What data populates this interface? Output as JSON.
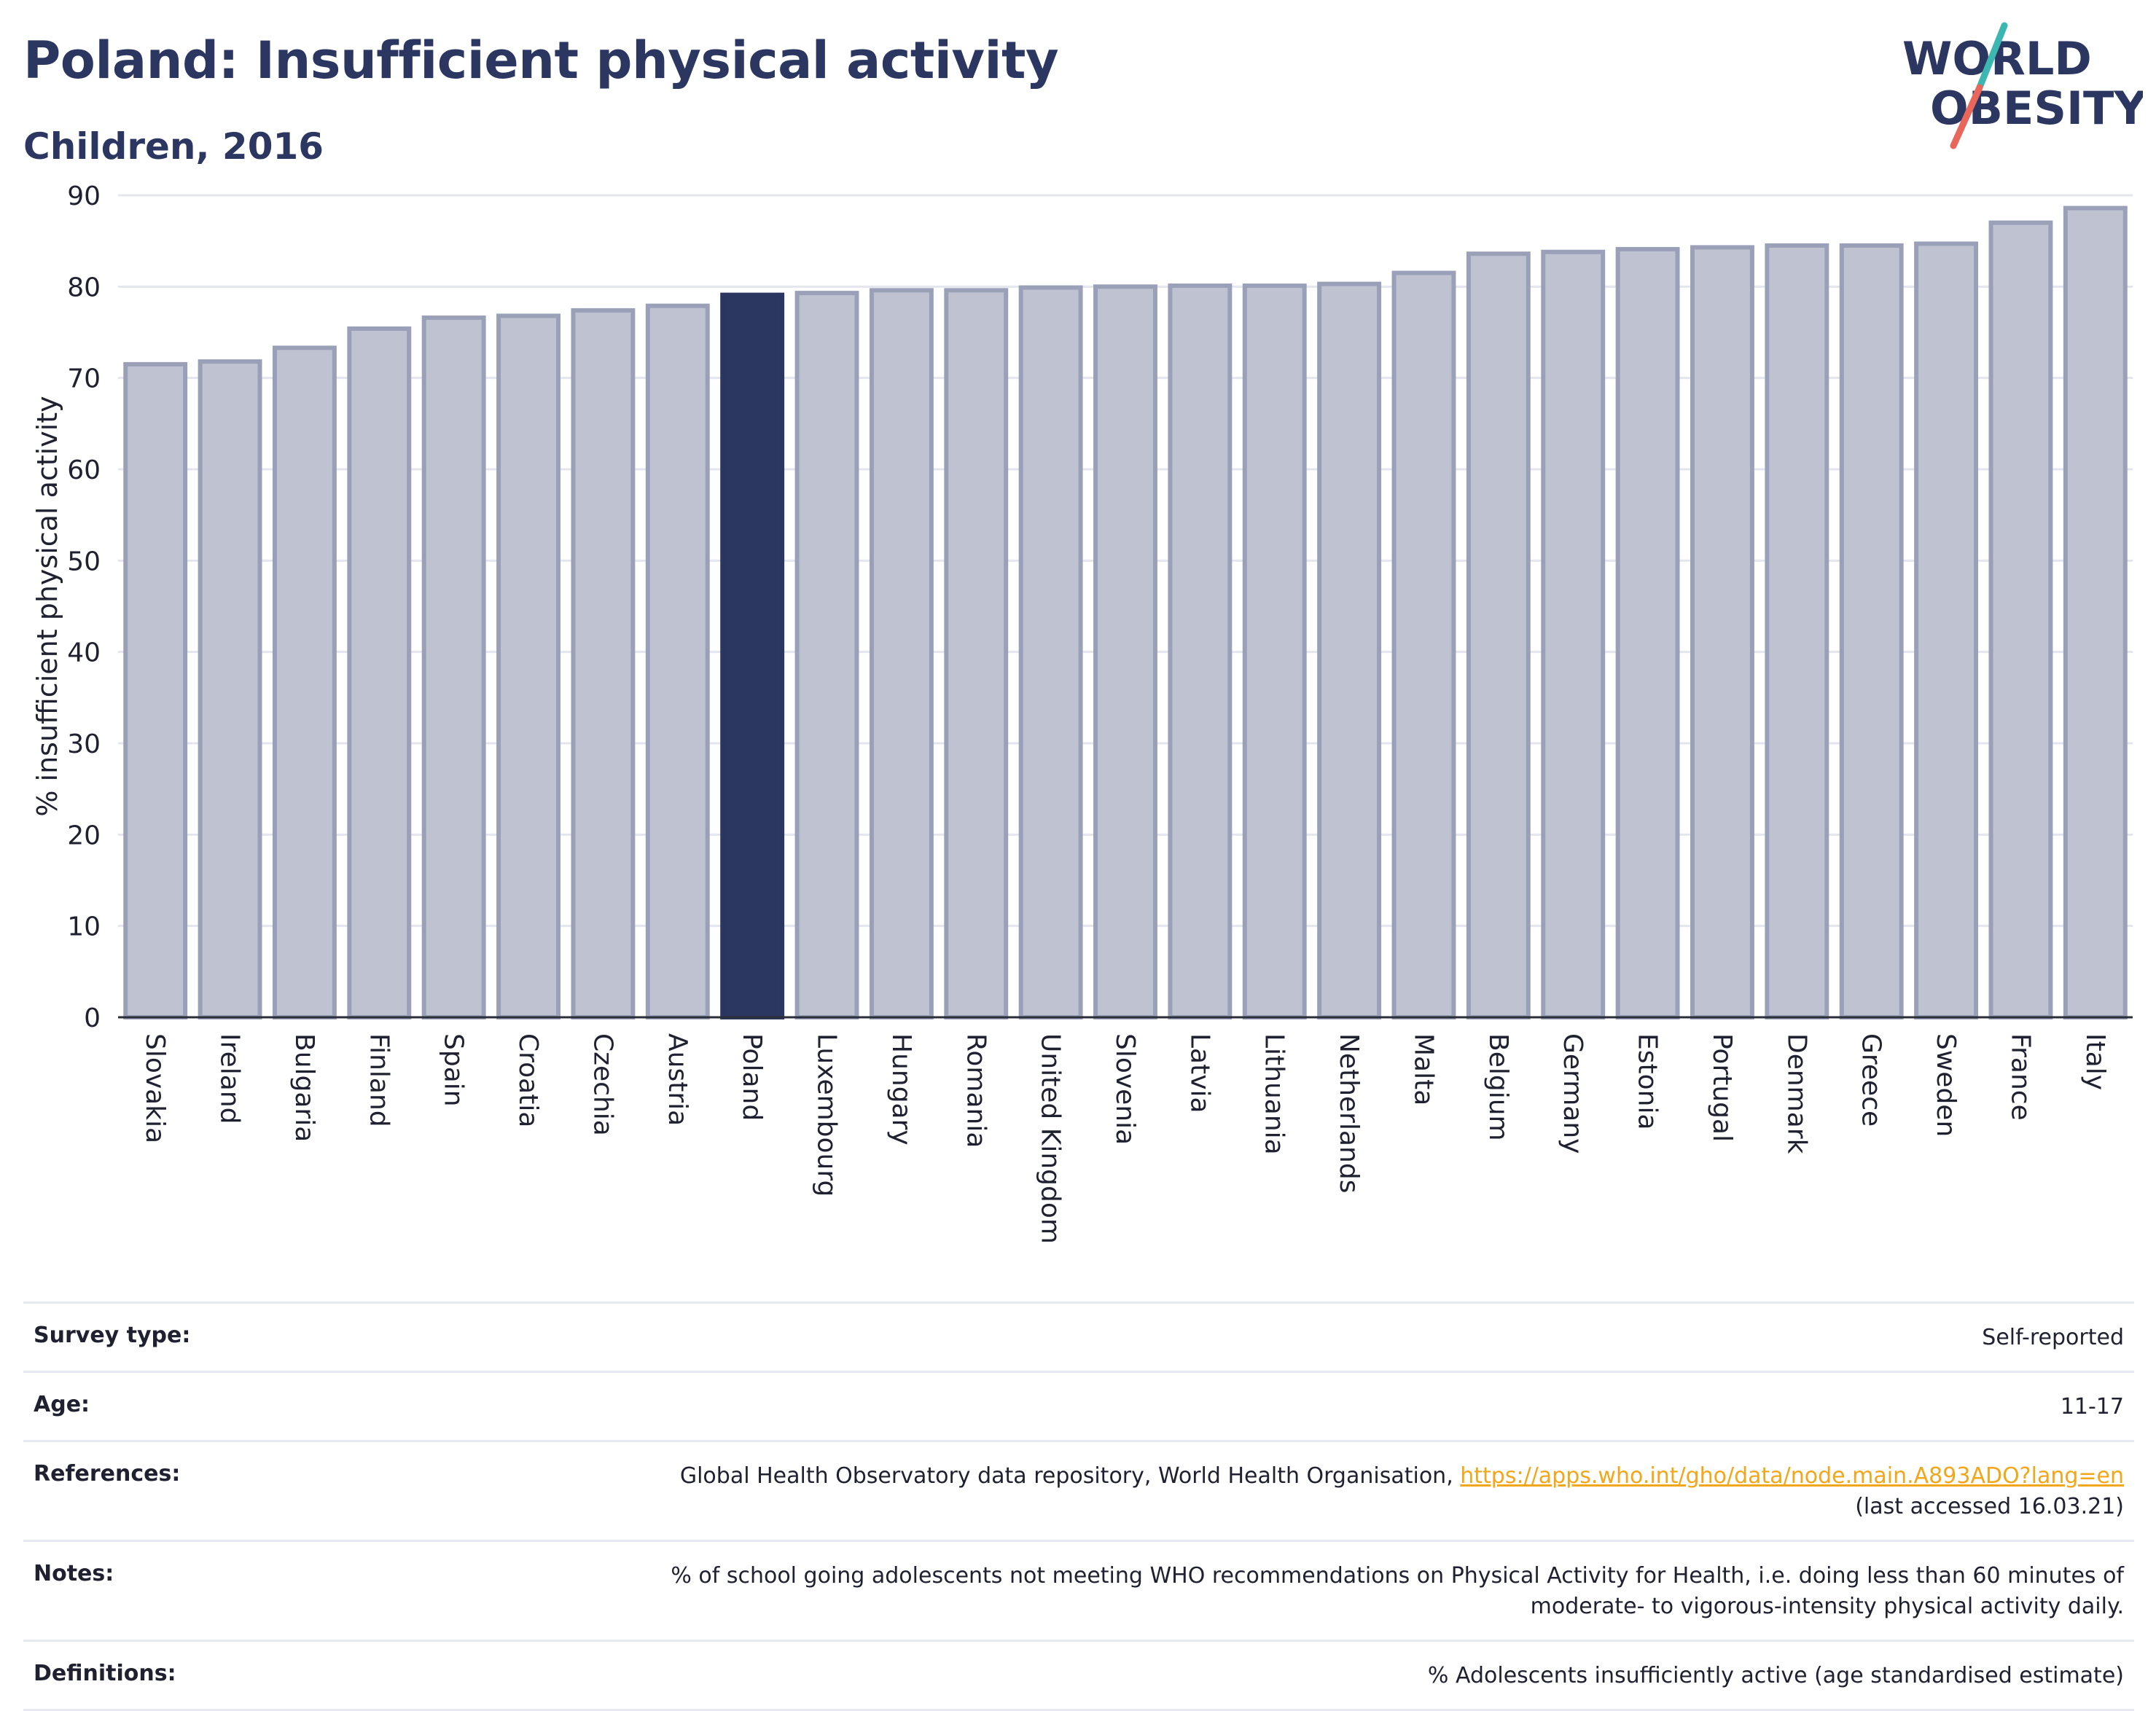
{
  "header": {
    "title": "Poland: Insufficient physical activity",
    "subtitle": "Children, 2016",
    "logo": {
      "line1": "WORLD",
      "line2": "OBESITY"
    }
  },
  "colors": {
    "highlight_bar": "#2b3661",
    "bar_fill": "#bfc3d1",
    "bar_stroke": "#9aa0b8",
    "title": "#2b3661",
    "link": "#f2a71b",
    "logo_slash_teal": "#3bb6b0",
    "logo_slash_coral": "#e8675a"
  },
  "chart_data": {
    "type": "bar",
    "title": "Poland: Insufficient physical activity",
    "subtitle": "Children, 2016",
    "xlabel": "",
    "ylabel": "% insufficient physical activity",
    "ylim": [
      0,
      90
    ],
    "yticks": [
      0,
      10,
      20,
      30,
      40,
      50,
      60,
      70,
      80,
      90
    ],
    "grid": true,
    "highlight": "Poland",
    "categories": [
      "Slovakia",
      "Ireland",
      "Bulgaria",
      "Finland",
      "Spain",
      "Croatia",
      "Czechia",
      "Austria",
      "Poland",
      "Luxembourg",
      "Hungary",
      "Romania",
      "United Kingdom",
      "Slovenia",
      "Latvia",
      "Lithuania",
      "Netherlands",
      "Malta",
      "Belgium",
      "Germany",
      "Estonia",
      "Portugal",
      "Denmark",
      "Greece",
      "Sweden",
      "France",
      "Italy"
    ],
    "values": [
      71.5,
      71.8,
      73.3,
      75.4,
      76.6,
      76.8,
      77.4,
      77.9,
      79.1,
      79.3,
      79.6,
      79.6,
      79.9,
      80.0,
      80.1,
      80.1,
      80.3,
      81.5,
      83.6,
      83.8,
      84.1,
      84.3,
      84.5,
      84.5,
      84.7,
      87.0,
      88.6
    ]
  },
  "meta": {
    "survey_type": {
      "label": "Survey type:",
      "value": "Self-reported"
    },
    "age": {
      "label": "Age:",
      "value": "11-17"
    },
    "references": {
      "label": "References:",
      "text": "Global Health Observatory data repository, World Health Organisation, ",
      "link": "https://apps.who.int/gho/data/node.main.A893ADO?lang=en",
      "accessed": "(last accessed 16.03.21)"
    },
    "notes": {
      "label": "Notes:",
      "line1": "% of school going adolescents not meeting WHO recommendations on Physical Activity for Health, i.e. doing less than 60 minutes of",
      "line2": "moderate- to vigorous-intensity physical activity daily."
    },
    "definitions": {
      "label": "Definitions:",
      "value": "% Adolescents insufficiently active (age standardised estimate)"
    }
  }
}
